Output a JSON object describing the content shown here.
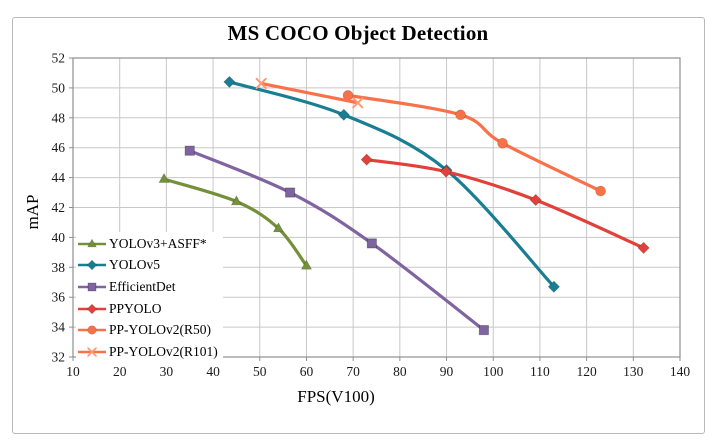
{
  "chart_data": {
    "type": "line",
    "title": "MS COCO Object Detection",
    "xlabel": "FPS(V100)",
    "ylabel": "mAP",
    "xlim": [
      10,
      140
    ],
    "xtick_step": 10,
    "ylim": [
      32,
      52
    ],
    "ytick_step": 2,
    "grid": true,
    "legend_position": "lower-left",
    "series": [
      {
        "name": "YOLOv3+ASFF*",
        "color": "#75903A",
        "marker": "triangle",
        "points": [
          [
            29.5,
            43.9
          ],
          [
            45,
            42.4
          ],
          [
            54,
            40.6
          ],
          [
            60,
            38.1
          ]
        ]
      },
      {
        "name": "YOLOv5",
        "color": "#1A7E93",
        "marker": "diamond",
        "points": [
          [
            43.5,
            50.4
          ],
          [
            68,
            48.2
          ],
          [
            90,
            44.5
          ],
          [
            113,
            36.7
          ]
        ]
      },
      {
        "name": "EfficientDet",
        "color": "#8064A2",
        "marker": "square",
        "points": [
          [
            35,
            45.8
          ],
          [
            56.5,
            43.0
          ],
          [
            74,
            39.6
          ],
          [
            98,
            33.8
          ]
        ]
      },
      {
        "name": "PPYOLO",
        "color": "#E2403A",
        "marker": "diamond",
        "points": [
          [
            72.9,
            45.2
          ],
          [
            89.9,
            44.4
          ],
          [
            109.1,
            42.5
          ],
          [
            132.2,
            39.3
          ]
        ]
      },
      {
        "name": "PP-YOLOv2(R50)",
        "color": "#F97148",
        "marker": "circle",
        "points": [
          [
            68.9,
            49.5
          ],
          [
            93,
            48.2
          ],
          [
            102,
            46.3
          ],
          [
            123,
            43.1
          ]
        ]
      },
      {
        "name": "PP-YOLOv2(R101)",
        "color": "#F97148",
        "marker": "x",
        "marker_color": "#FB9A77",
        "points": [
          [
            50.3,
            50.3
          ],
          [
            71,
            49.0
          ]
        ]
      }
    ]
  }
}
